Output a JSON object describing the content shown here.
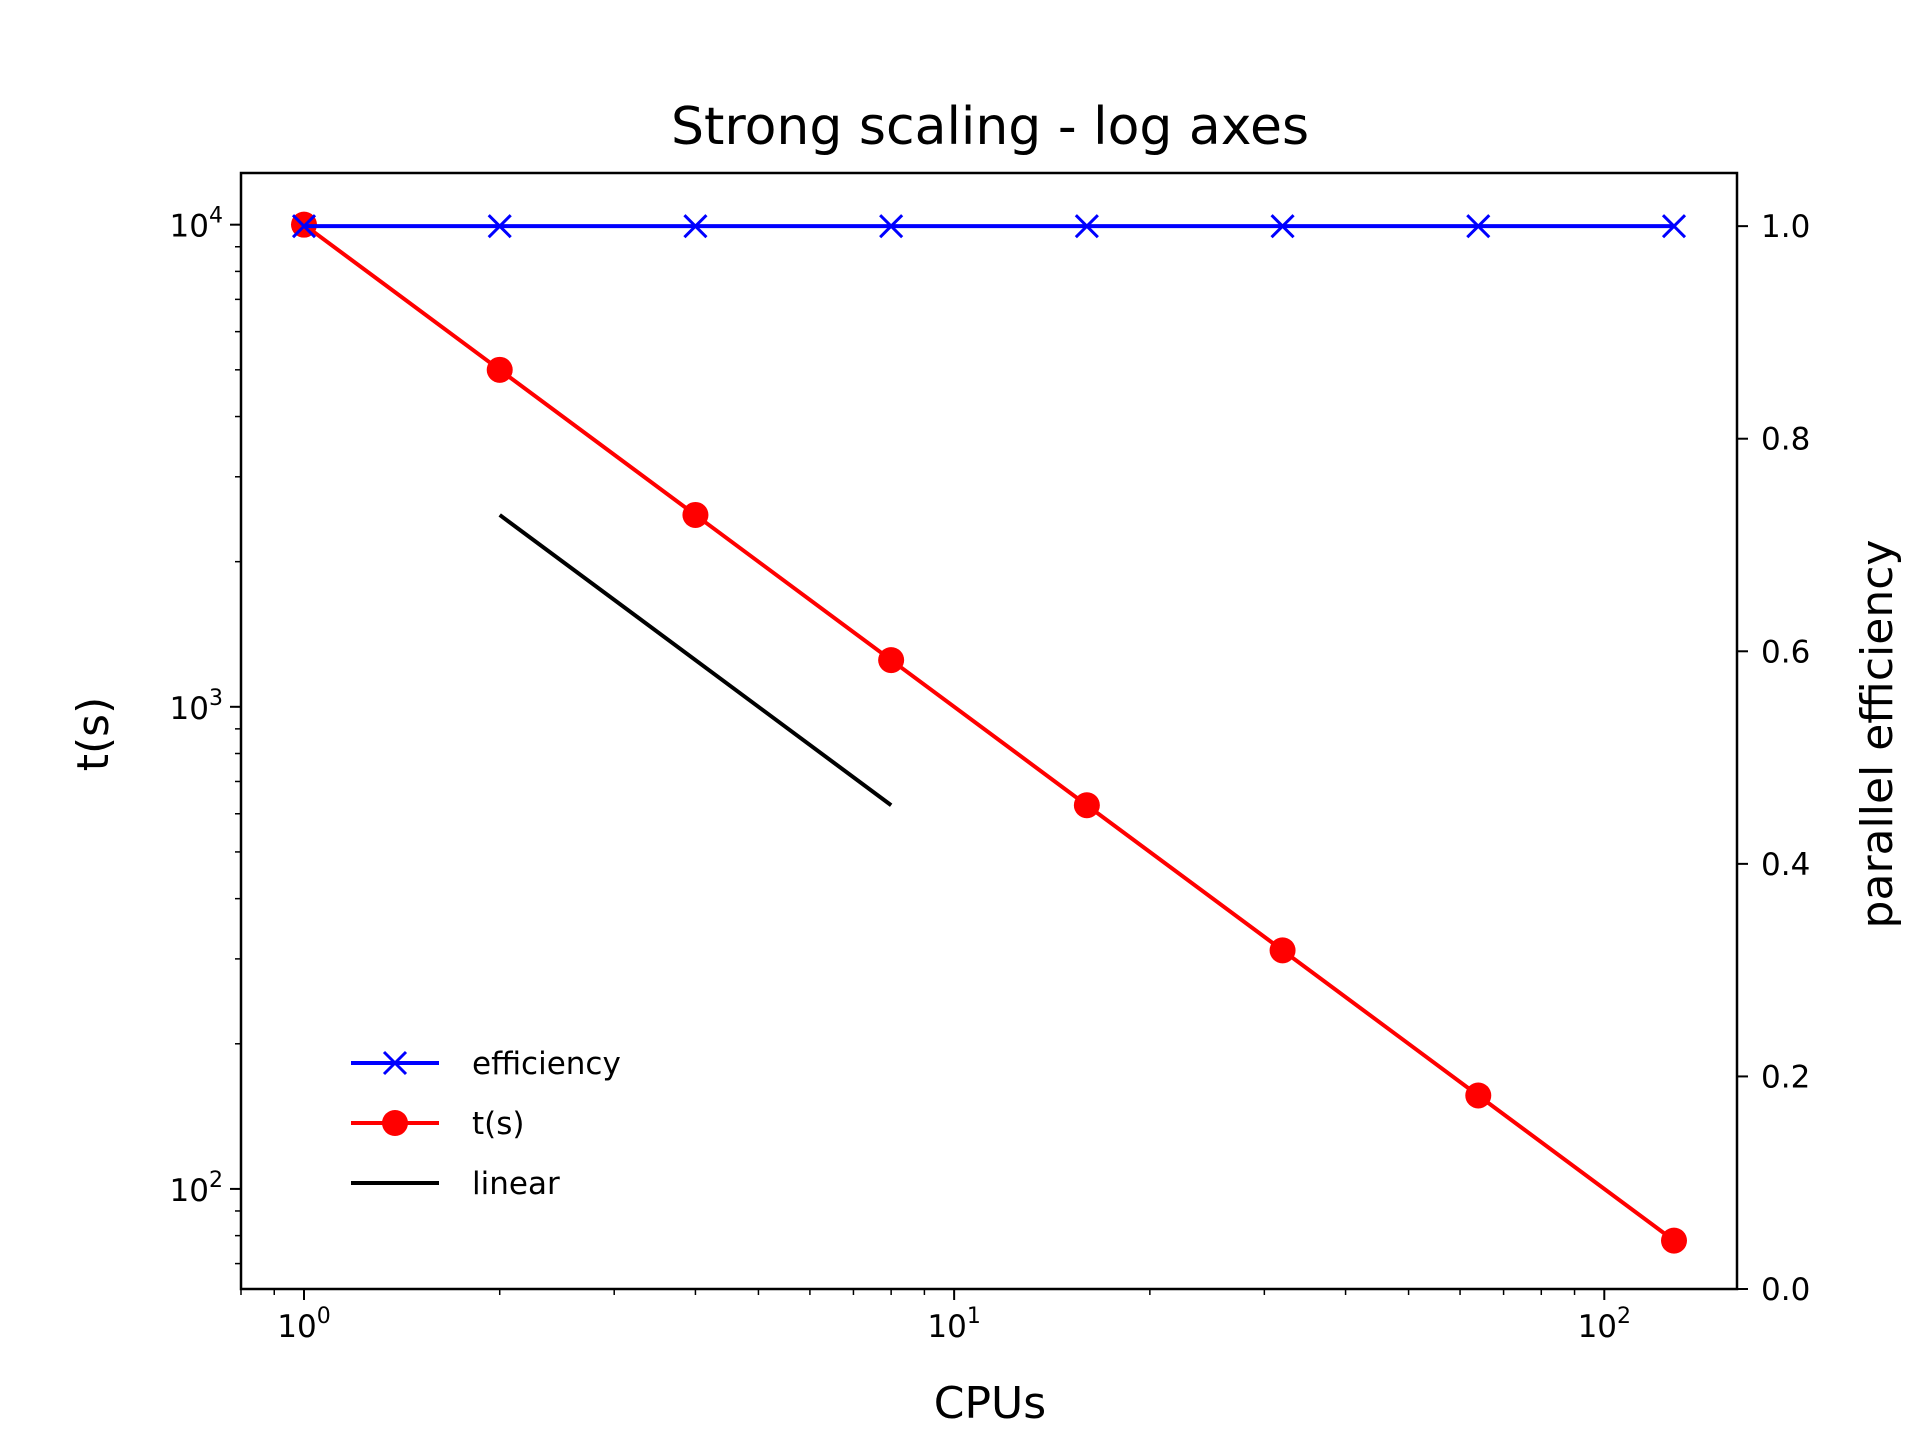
{
  "chart_data": {
    "type": "line",
    "title": "Strong scaling - log axes",
    "xlabel": "CPUs",
    "ylabel": "t(s)",
    "y2label": "parallel efficiency",
    "x_scale": "log",
    "y_scale": "log",
    "xlim": [
      0.8,
      160
    ],
    "ylim": [
      62,
      12800
    ],
    "y2lim": [
      0.0,
      1.05
    ],
    "x_ticks": [
      {
        "value": 1,
        "base": "10",
        "exp": "0"
      },
      {
        "value": 10,
        "base": "10",
        "exp": "1"
      },
      {
        "value": 100,
        "base": "10",
        "exp": "2"
      }
    ],
    "y_ticks": [
      {
        "value": 100,
        "base": "10",
        "exp": "2"
      },
      {
        "value": 1000,
        "base": "10",
        "exp": "3"
      },
      {
        "value": 10000,
        "base": "10",
        "exp": "4"
      }
    ],
    "y2_ticks": [
      "0.0",
      "0.2",
      "0.4",
      "0.6",
      "0.8",
      "1.0"
    ],
    "series": [
      {
        "name": "efficiency",
        "axis": "right",
        "color": "#0000ff",
        "marker": "x",
        "x": [
          1,
          2,
          4,
          8,
          16,
          32,
          64,
          128
        ],
        "y": [
          1.0,
          1.0,
          1.0,
          1.0,
          1.0,
          1.0,
          1.0,
          1.0
        ]
      },
      {
        "name": "t(s)",
        "axis": "left",
        "color": "#ff0000",
        "marker": "o",
        "x": [
          1,
          2,
          4,
          8,
          16,
          32,
          64,
          128
        ],
        "y": [
          10000,
          5000,
          2500,
          1250,
          625,
          312.5,
          156.25,
          78.125
        ]
      },
      {
        "name": "linear",
        "axis": "left",
        "color": "#000000",
        "marker": "none",
        "x": [
          2,
          8
        ],
        "y": [
          2500,
          625
        ]
      }
    ],
    "legend_position": "lower-left",
    "grid": false
  }
}
